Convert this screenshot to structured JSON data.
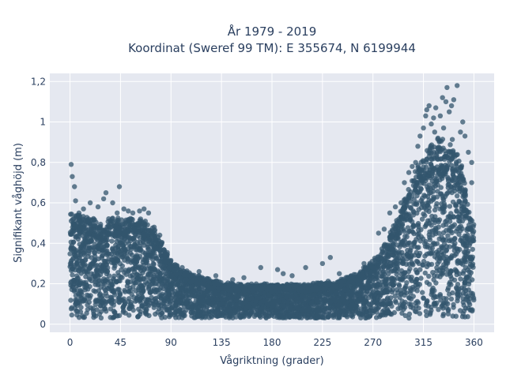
{
  "chart_data": {
    "type": "scatter",
    "title": "År 1979 - 2019",
    "subtitle": "Koordinat (Sweref 99 TM): E 355674, N 6199944",
    "xlabel": "Vågriktning (grader)",
    "ylabel": "Signifikant våghöjd (m)",
    "xlim": [
      -18,
      378
    ],
    "ylim": [
      -0.04,
      1.24
    ],
    "x_ticks": [
      0,
      45,
      90,
      135,
      180,
      225,
      270,
      315,
      360
    ],
    "x_tick_labels": [
      "0",
      "45",
      "90",
      "135",
      "180",
      "225",
      "270",
      "315",
      "360"
    ],
    "y_ticks": [
      0,
      0.2,
      0.4,
      0.6,
      0.8,
      1,
      1.2
    ],
    "y_tick_labels": [
      "0",
      "0,2",
      "0,4",
      "0,6",
      "0,8",
      "1",
      "1,2"
    ],
    "grid": true,
    "marker_color": "#33566d",
    "envelope": {
      "x": [
        0,
        10,
        20,
        30,
        40,
        45,
        55,
        65,
        75,
        85,
        90,
        100,
        110,
        120,
        135,
        150,
        165,
        180,
        195,
        210,
        225,
        240,
        255,
        270,
        280,
        290,
        300,
        310,
        315,
        320,
        330,
        340,
        350,
        355,
        360
      ],
      "y_min": [
        0.03,
        0.03,
        0.03,
        0.03,
        0.03,
        0.03,
        0.03,
        0.03,
        0.03,
        0.03,
        0.03,
        0.03,
        0.03,
        0.03,
        0.03,
        0.03,
        0.03,
        0.03,
        0.03,
        0.03,
        0.03,
        0.03,
        0.03,
        0.03,
        0.03,
        0.03,
        0.03,
        0.03,
        0.03,
        0.03,
        0.03,
        0.03,
        0.03,
        0.03,
        0.03
      ],
      "y_max": [
        0.52,
        0.52,
        0.5,
        0.48,
        0.52,
        0.5,
        0.5,
        0.5,
        0.45,
        0.36,
        0.3,
        0.26,
        0.24,
        0.22,
        0.2,
        0.19,
        0.19,
        0.19,
        0.19,
        0.19,
        0.2,
        0.21,
        0.24,
        0.3,
        0.38,
        0.48,
        0.62,
        0.75,
        0.82,
        0.86,
        0.88,
        0.88,
        0.75,
        0.55,
        0.48
      ]
    },
    "outliers": {
      "x": [
        1,
        2,
        4,
        5,
        8,
        12,
        18,
        25,
        30,
        32,
        38,
        42,
        44,
        48,
        52,
        56,
        62,
        66,
        70,
        75,
        80,
        100,
        115,
        130,
        145,
        155,
        170,
        185,
        190,
        198,
        210,
        225,
        232,
        240,
        262,
        275,
        280,
        285,
        290,
        295,
        298,
        302,
        305,
        308,
        310,
        312,
        315,
        317,
        318,
        320,
        322,
        324,
        325,
        326,
        328,
        330,
        332,
        333,
        335,
        336,
        338,
        340,
        342,
        345,
        348,
        350,
        352,
        355,
        358,
        358
      ],
      "y": [
        0.79,
        0.73,
        0.68,
        0.61,
        0.55,
        0.57,
        0.6,
        0.58,
        0.62,
        0.65,
        0.6,
        0.55,
        0.68,
        0.57,
        0.56,
        0.55,
        0.56,
        0.57,
        0.55,
        0.48,
        0.44,
        0.28,
        0.26,
        0.24,
        0.22,
        0.23,
        0.28,
        0.27,
        0.25,
        0.24,
        0.28,
        0.3,
        0.33,
        0.25,
        0.3,
        0.45,
        0.47,
        0.55,
        0.58,
        0.6,
        0.7,
        0.75,
        0.78,
        0.8,
        0.88,
        0.93,
        0.97,
        1.03,
        1.06,
        1.08,
        0.99,
        1.02,
        0.95,
        1.07,
        0.92,
        1.03,
        1.12,
        0.97,
        1.1,
        1.17,
        1.05,
        1.08,
        1.11,
        1.18,
        0.95,
        1.0,
        0.93,
        0.85,
        0.8,
        0.7
      ]
    }
  }
}
